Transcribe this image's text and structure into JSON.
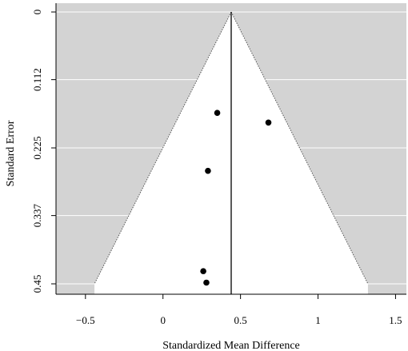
{
  "chart_data": {
    "type": "scatter",
    "subtype": "funnel-plot",
    "title": "",
    "xlabel": "Standardized Mean Difference",
    "ylabel": "Standard Error",
    "xlim": [
      -0.69,
      1.57
    ],
    "ylim": [
      0.45,
      0
    ],
    "y_reversed": true,
    "xticks": [
      -0.5,
      0,
      0.5,
      1,
      1.5
    ],
    "xtick_labels": [
      "−0.5",
      "0",
      "0.5",
      "1",
      "1.5"
    ],
    "yticks": [
      0,
      0.112,
      0.225,
      0.337,
      0.45
    ],
    "ytick_labels": [
      "0",
      "0.112",
      "0.225",
      "0.337",
      "0.45"
    ],
    "pooled_estimate": 0.44,
    "funnel_z": 1.96,
    "background_color": "#d3d3d3",
    "funnel_fill": "#ffffff",
    "grid": true,
    "grid_color": "#ffffff",
    "points": [
      {
        "x": 0.35,
        "y": 0.167
      },
      {
        "x": 0.68,
        "y": 0.183
      },
      {
        "x": 0.29,
        "y": 0.263
      },
      {
        "x": 0.26,
        "y": 0.429
      },
      {
        "x": 0.28,
        "y": 0.448
      }
    ]
  }
}
